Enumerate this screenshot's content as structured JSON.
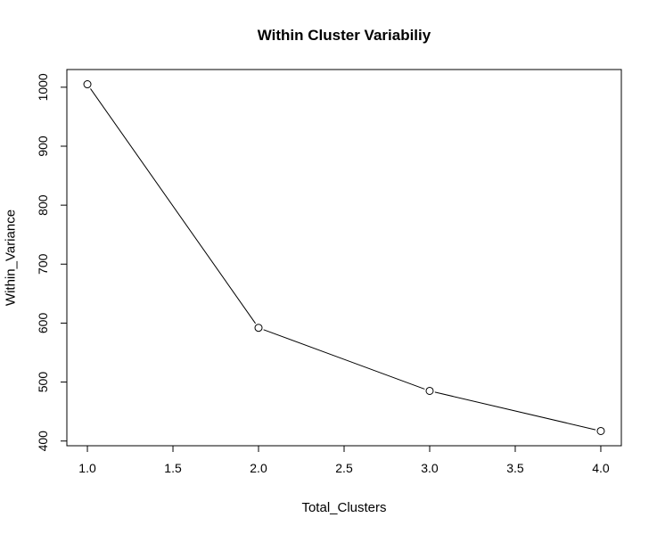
{
  "chart_data": {
    "type": "line",
    "title": "Within Cluster Variabiliy",
    "xlabel": "Total_Clusters",
    "ylabel": "Within_Variance",
    "x": [
      1,
      2,
      3,
      4
    ],
    "series": [
      {
        "values": [
          1005,
          592,
          485,
          417
        ]
      }
    ],
    "xlim": [
      0.88,
      4.12
    ],
    "ylim": [
      392,
      1030
    ],
    "xticks": [
      1.0,
      1.5,
      2.0,
      2.5,
      3.0,
      3.5,
      4.0
    ],
    "xtick_labels": [
      "1.0",
      "1.5",
      "2.0",
      "2.5",
      "3.0",
      "3.5",
      "4.0"
    ],
    "yticks": [
      400,
      500,
      600,
      700,
      800,
      900,
      1000
    ],
    "ytick_labels": [
      "400",
      "500",
      "600",
      "700",
      "800",
      "900",
      "1000"
    ],
    "grid": false,
    "marker": "open-circle",
    "line_color": "#000000"
  }
}
